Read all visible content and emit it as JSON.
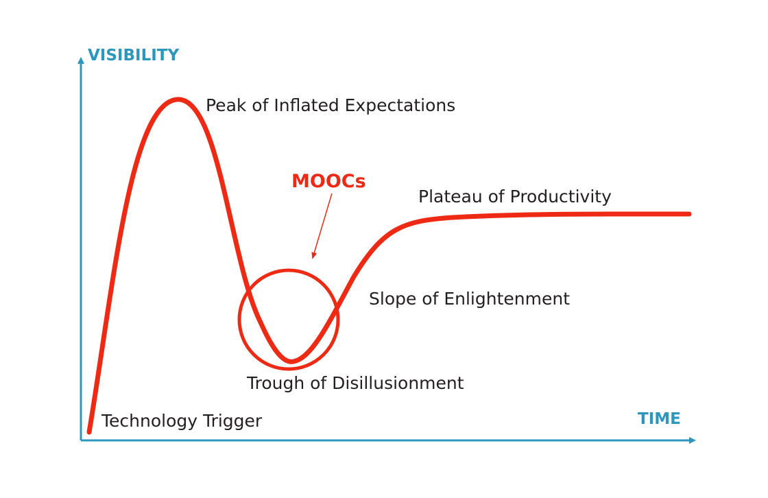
{
  "axes": {
    "y_label": "VISIBILITY",
    "x_label": "TIME"
  },
  "phases": [
    {
      "label": "Technology Trigger"
    },
    {
      "label": "Peak of Inflated Expectations"
    },
    {
      "label": "Trough of Disillusionment"
    },
    {
      "label": "Slope of Enlightenment"
    },
    {
      "label": "Plateau of Productivity"
    }
  ],
  "annotation": {
    "label": "MOOCs"
  }
}
